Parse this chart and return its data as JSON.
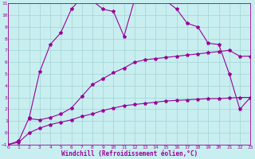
{
  "xlabel": "Windchill (Refroidissement éolien,°C)",
  "bg_color": "#c8eef0",
  "grid_color": "#a8d8d8",
  "line_color": "#990099",
  "xlim": [
    0,
    23
  ],
  "ylim": [
    -1,
    11
  ],
  "xticks": [
    0,
    1,
    2,
    3,
    4,
    5,
    6,
    7,
    8,
    9,
    10,
    11,
    12,
    13,
    14,
    15,
    16,
    17,
    18,
    19,
    20,
    21,
    22,
    23
  ],
  "yticks": [
    -1,
    0,
    1,
    2,
    3,
    4,
    5,
    6,
    7,
    8,
    9,
    10,
    11
  ],
  "curve1_x": [
    0,
    1,
    2,
    3,
    4,
    5,
    6,
    7,
    8,
    9,
    10,
    11,
    12,
    13,
    14,
    15,
    16,
    17,
    18,
    19,
    20,
    21,
    22,
    23
  ],
  "curve1_y": [
    -1,
    -0.7,
    1.3,
    5.2,
    7.5,
    8.5,
    10.5,
    11.5,
    11.2,
    10.5,
    10.3,
    8.2,
    11.3,
    11.3,
    11.3,
    11.2,
    10.5,
    9.3,
    9.0,
    7.6,
    7.5,
    5.0,
    2.0,
    3.0
  ],
  "curve2_x": [
    2,
    3,
    4,
    5,
    6,
    7,
    8,
    9,
    10,
    11,
    12,
    13,
    14,
    15,
    16,
    17,
    18,
    19,
    20,
    21,
    22,
    23
  ],
  "curve2_y": [
    1.2,
    1.1,
    1.3,
    1.6,
    2.1,
    3.1,
    4.1,
    4.6,
    5.1,
    5.5,
    6.0,
    6.2,
    6.3,
    6.4,
    6.5,
    6.6,
    6.7,
    6.8,
    6.9,
    7.0,
    6.5,
    6.5
  ],
  "curve3_x": [
    0,
    1,
    2,
    3,
    4,
    5,
    6,
    7,
    8,
    9,
    10,
    11,
    12,
    13,
    14,
    15,
    16,
    17,
    18,
    19,
    20,
    21,
    22,
    23
  ],
  "curve3_y": [
    -1,
    -0.8,
    0.0,
    0.4,
    0.7,
    0.9,
    1.1,
    1.4,
    1.6,
    1.9,
    2.1,
    2.3,
    2.4,
    2.5,
    2.6,
    2.7,
    2.75,
    2.8,
    2.85,
    2.9,
    2.9,
    2.95,
    3.0,
    3.0
  ]
}
